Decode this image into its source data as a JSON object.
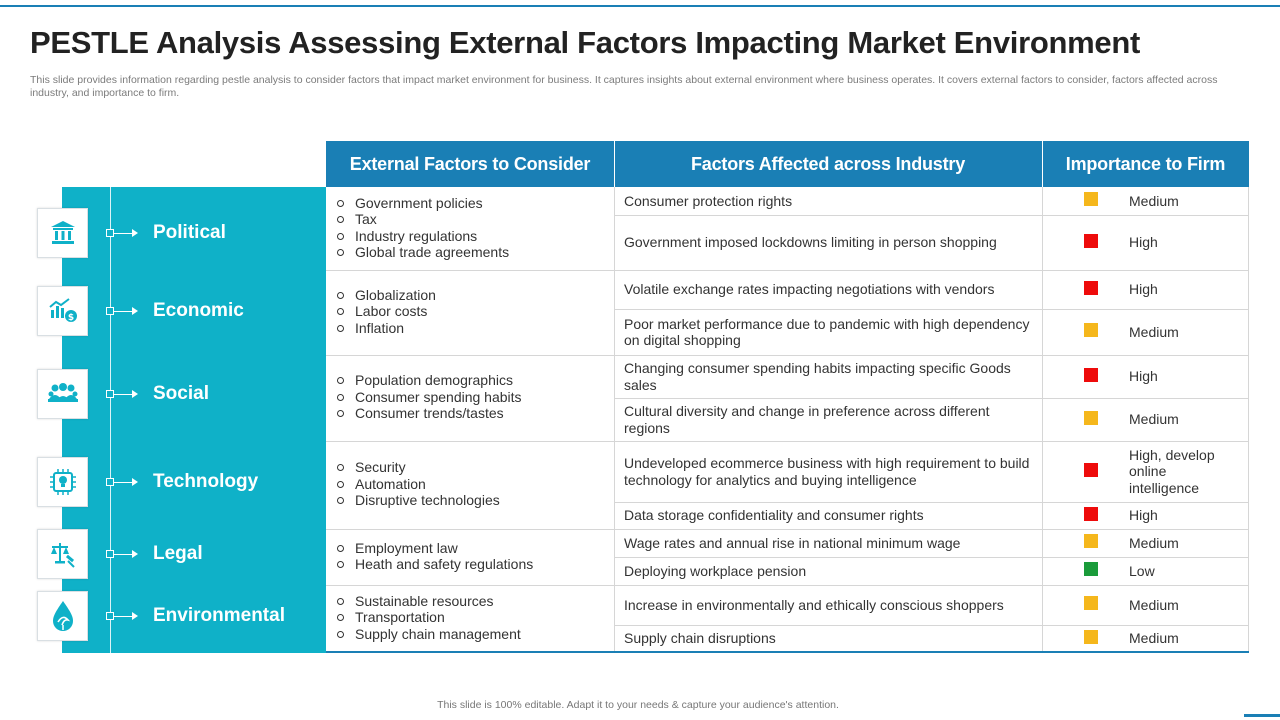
{
  "title": "PESTLE Analysis Assessing External Factors Impacting Market Environment",
  "subtitle": "This slide provides information regarding pestle analysis to consider factors that impact market environment for business. It captures insights about external environment where business operates. It covers external factors to consider, factors affected across industry, and importance to firm.",
  "headers": {
    "external": "External Factors to Consider",
    "affected": "Factors Affected across Industry",
    "importance": "Importance to Firm"
  },
  "categories": [
    {
      "label": "Political",
      "icon": "government-building-icon"
    },
    {
      "label": "Economic",
      "icon": "economy-chart-icon"
    },
    {
      "label": "Social",
      "icon": "people-group-icon"
    },
    {
      "label": "Technology",
      "icon": "chip-bulb-icon"
    },
    {
      "label": "Legal",
      "icon": "scales-gavel-icon"
    },
    {
      "label": "Environmental",
      "icon": "eco-drop-icon"
    }
  ],
  "external_factors": [
    [
      "Government policies",
      "Tax",
      "Industry regulations",
      "Global trade agreements"
    ],
    [
      "Globalization",
      "Labor costs",
      "Inflation"
    ],
    [
      "Population demographics",
      "Consumer spending habits",
      "Consumer trends/tastes"
    ],
    [
      "Security",
      "Automation",
      "Disruptive technologies"
    ],
    [
      "Employment law",
      "Heath and safety regulations"
    ],
    [
      "Sustainable resources",
      "Transportation",
      "Supply chain management"
    ]
  ],
  "rows": [
    {
      "factor": "Consumer protection rights",
      "importance": "Medium",
      "color": "#f5b71c"
    },
    {
      "factor": "Government imposed lockdowns limiting in person shopping",
      "importance": "High",
      "color": "#ee0b0b"
    },
    {
      "factor": "Volatile exchange rates impacting negotiations with vendors",
      "importance": "High",
      "color": "#ee0b0b"
    },
    {
      "factor": "Poor market performance due to pandemic with high dependency on digital shopping",
      "importance": "Medium",
      "color": "#f5b71c"
    },
    {
      "factor": "Changing consumer spending habits impacting specific Goods sales",
      "importance": "High",
      "color": "#ee0b0b"
    },
    {
      "factor": "Cultural diversity and change in preference across different regions",
      "importance": "Medium",
      "color": "#f5b71c"
    },
    {
      "factor": "Undeveloped ecommerce business with high requirement to build technology for analytics and buying intelligence",
      "importance": "High, develop online intelligence",
      "color": "#ee0b0b"
    },
    {
      "factor": "Data storage confidentiality and consumer rights",
      "importance": "High",
      "color": "#ee0b0b"
    },
    {
      "factor": "Wage rates and annual rise in national minimum  wage",
      "importance": "Medium",
      "color": "#f5b71c"
    },
    {
      "factor": "Deploying workplace pension",
      "importance": "Low",
      "color": "#1a9b3a"
    },
    {
      "factor": "Increase in environmentally and ethically conscious shoppers",
      "importance": "Medium",
      "color": "#f5b71c"
    },
    {
      "factor": "Supply chain disruptions",
      "importance": "Medium",
      "color": "#f5b71c"
    }
  ],
  "footer": "This slide is 100% editable.  Adapt it to your needs & capture your audience's attention."
}
